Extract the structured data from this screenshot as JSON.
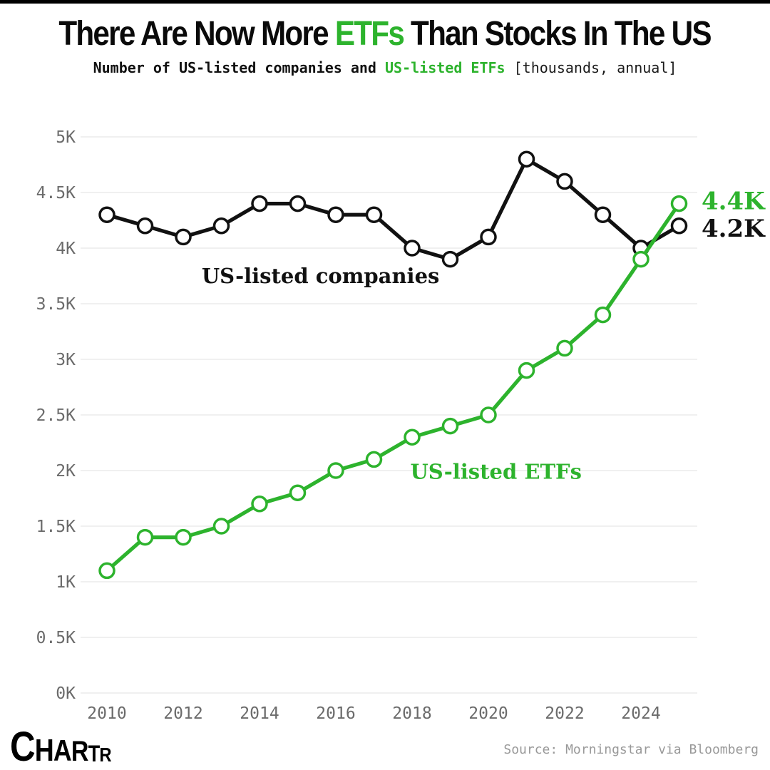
{
  "colors": {
    "accent_green": "#2db32d",
    "series_black": "#111111",
    "gridline": "#f0f0f0",
    "axis_text": "#6b6b6b",
    "source_text": "#999999",
    "marker_fill": "#ffffff"
  },
  "header": {
    "title": {
      "pre": "There Are Now More ",
      "accent": "ETFs",
      "post": " Than Stocks In The US"
    },
    "subtitle": {
      "pre": "Number of US-listed companies and ",
      "accent": "US-listed ETFs",
      "bracket": " [thousands, annual]"
    }
  },
  "chart_data": {
    "type": "line",
    "x": [
      2010,
      2011,
      2012,
      2013,
      2014,
      2015,
      2016,
      2017,
      2018,
      2019,
      2020,
      2021,
      2022,
      2023,
      2024,
      2025
    ],
    "series": [
      {
        "name": "US-listed companies",
        "color_key": "series_black",
        "values_thousands": [
          4.3,
          4.2,
          4.1,
          4.2,
          4.4,
          4.4,
          4.3,
          4.3,
          4.0,
          3.9,
          4.1,
          4.8,
          4.6,
          4.3,
          4.0,
          4.2
        ],
        "end_label": "4.2K",
        "inline_label_pos": {
          "year": 2015.6,
          "value": 3.75
        }
      },
      {
        "name": "US-listed ETFs",
        "color_key": "accent_green",
        "values_thousands": [
          1.1,
          1.4,
          1.4,
          1.5,
          1.7,
          1.8,
          2.0,
          2.1,
          2.3,
          2.4,
          2.5,
          2.9,
          3.1,
          3.4,
          3.9,
          4.4
        ],
        "end_label": "4.4K",
        "inline_label_pos": {
          "year": 2020.2,
          "value": 1.99
        }
      }
    ],
    "title": "There Are Now More ETFs Than Stocks In The US",
    "subtitle": "Number of US-listed companies and US-listed ETFs [thousands, annual]",
    "xlabel": "",
    "ylabel": "thousands",
    "ylim": [
      0,
      5
    ],
    "ytick_step": 0.5,
    "ytick_labels": [
      "0K",
      "0.5K",
      "1K",
      "1.5K",
      "2K",
      "2.5K",
      "3K",
      "3.5K",
      "4K",
      "4.5K",
      "5K"
    ],
    "xtick_labels": [
      "2010",
      "2012",
      "2014",
      "2016",
      "2018",
      "2020",
      "2022",
      "2024"
    ],
    "grid": "horizontal",
    "legend": "inline-labels"
  },
  "footer": {
    "logo_letters": [
      "C",
      "H",
      "A",
      "R",
      "T",
      "R"
    ],
    "source": "Source: Morningstar via Bloomberg"
  }
}
